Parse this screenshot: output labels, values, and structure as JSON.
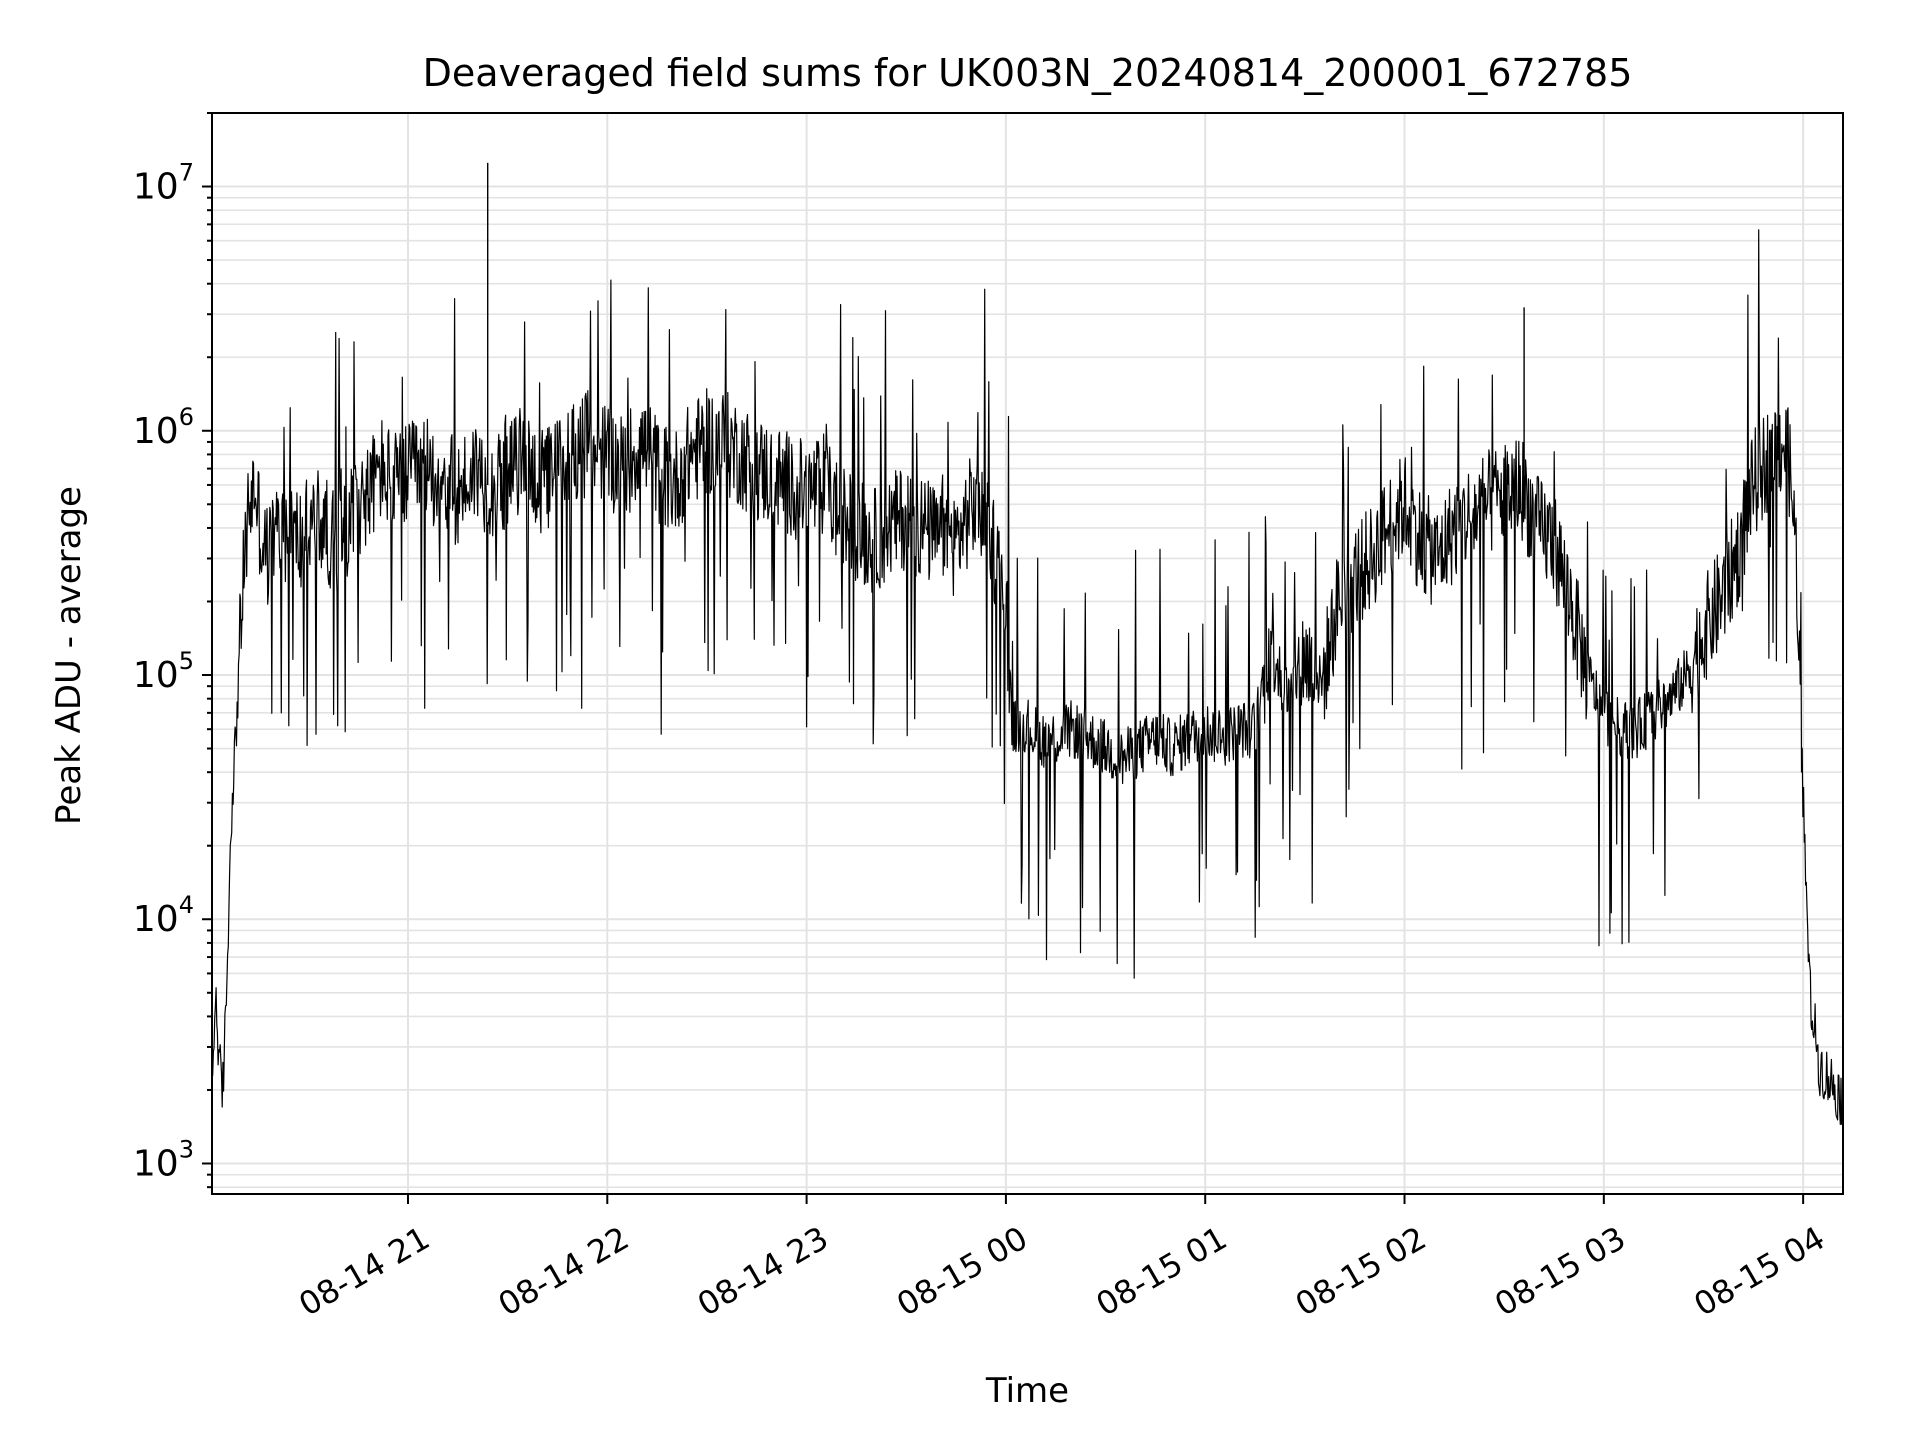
{
  "chart_data": {
    "type": "line",
    "title": "Deaveraged field sums for UK003N_20240814_200001_672785",
    "xlabel": "Time",
    "ylabel": "Peak ADU - average",
    "yscale": "log",
    "ylim": [
      750,
      20000000
    ],
    "xlim": [
      "2024-08-14 20:01",
      "2024-08-15 04:12"
    ],
    "grid": true,
    "line_color": "#000000",
    "x_ticks": [
      "08-14 21",
      "08-14 22",
      "08-14 23",
      "08-15 00",
      "08-15 01",
      "08-15 02",
      "08-15 03",
      "08-15 04"
    ],
    "y_ticks": [
      {
        "base": "10",
        "exp": "3",
        "value": 1000
      },
      {
        "base": "10",
        "exp": "4",
        "value": 10000
      },
      {
        "base": "10",
        "exp": "5",
        "value": 100000
      },
      {
        "base": "10",
        "exp": "6",
        "value": 1000000
      },
      {
        "base": "10",
        "exp": "7",
        "value": 10000000
      }
    ],
    "series": [
      {
        "x": [
          "2024-08-14 20:01",
          "2024-08-14 20:02",
          "2024-08-14 20:04",
          "2024-08-14 20:05",
          "2024-08-14 20:07",
          "2024-08-14 20:08",
          "2024-08-14 20:10",
          "2024-08-14 20:12",
          "2024-08-14 20:14",
          "2024-08-14 20:16",
          "2024-08-14 20:18",
          "2024-08-14 20:20",
          "2024-08-14 20:24",
          "2024-08-14 20:28",
          "2024-08-14 20:32",
          "2024-08-14 20:36",
          "2024-08-14 20:40",
          "2024-08-14 20:44",
          "2024-08-14 20:48",
          "2024-08-14 20:52",
          "2024-08-14 20:56",
          "2024-08-14 21:00",
          "2024-08-14 21:05",
          "2024-08-14 21:10",
          "2024-08-14 21:15",
          "2024-08-14 21:20",
          "2024-08-14 21:25",
          "2024-08-14 21:30",
          "2024-08-14 21:35",
          "2024-08-14 21:40",
          "2024-08-14 21:45",
          "2024-08-14 21:50",
          "2024-08-14 21:55",
          "2024-08-14 22:00",
          "2024-08-14 22:05",
          "2024-08-14 22:10",
          "2024-08-14 22:15",
          "2024-08-14 22:20",
          "2024-08-14 22:25",
          "2024-08-14 22:30",
          "2024-08-14 22:35",
          "2024-08-14 22:40",
          "2024-08-14 22:45",
          "2024-08-14 22:50",
          "2024-08-14 22:55",
          "2024-08-14 23:00",
          "2024-08-14 23:05",
          "2024-08-14 23:10",
          "2024-08-14 23:15",
          "2024-08-14 23:20",
          "2024-08-14 23:25",
          "2024-08-14 23:30",
          "2024-08-14 23:35",
          "2024-08-14 23:40",
          "2024-08-14 23:45",
          "2024-08-14 23:50",
          "2024-08-14 23:55",
          "2024-08-15 00:00",
          "2024-08-15 00:02",
          "2024-08-15 00:05",
          "2024-08-15 00:10",
          "2024-08-15 00:15",
          "2024-08-15 00:20",
          "2024-08-15 00:25",
          "2024-08-15 00:30",
          "2024-08-15 00:35",
          "2024-08-15 00:40",
          "2024-08-15 00:45",
          "2024-08-15 00:50",
          "2024-08-15 00:55",
          "2024-08-15 01:00",
          "2024-08-15 01:05",
          "2024-08-15 01:10",
          "2024-08-15 01:15",
          "2024-08-15 01:20",
          "2024-08-15 01:25",
          "2024-08-15 01:30",
          "2024-08-15 01:35",
          "2024-08-15 01:40",
          "2024-08-15 01:45",
          "2024-08-15 01:50",
          "2024-08-15 01:55",
          "2024-08-15 02:00",
          "2024-08-15 02:05",
          "2024-08-15 02:10",
          "2024-08-15 02:15",
          "2024-08-15 02:20",
          "2024-08-15 02:25",
          "2024-08-15 02:30",
          "2024-08-15 02:35",
          "2024-08-15 02:40",
          "2024-08-15 02:45",
          "2024-08-15 02:50",
          "2024-08-15 02:55",
          "2024-08-15 03:00",
          "2024-08-15 03:05",
          "2024-08-15 03:10",
          "2024-08-15 03:15",
          "2024-08-15 03:20",
          "2024-08-15 03:25",
          "2024-08-15 03:30",
          "2024-08-15 03:35",
          "2024-08-15 03:40",
          "2024-08-15 03:45",
          "2024-08-15 03:50",
          "2024-08-15 03:54",
          "2024-08-15 03:56",
          "2024-08-15 03:58",
          "2024-08-15 04:00",
          "2024-08-15 04:02",
          "2024-08-15 04:05",
          "2024-08-15 04:08",
          "2024-08-15 04:10",
          "2024-08-15 04:12"
        ],
        "y": [
          1800,
          5000,
          1800,
          3500,
          32000,
          50000,
          200000,
          480000,
          600000,
          350000,
          300000,
          380000,
          400000,
          350000,
          450000,
          380000,
          350000,
          500000,
          550000,
          700000,
          600000,
          650000,
          700000,
          650000,
          550000,
          700000,
          600000,
          650000,
          800000,
          600000,
          700000,
          850000,
          900000,
          800000,
          700000,
          900000,
          700000,
          600000,
          800000,
          900000,
          900000,
          800000,
          700000,
          650000,
          600000,
          550000,
          600000,
          450000,
          400000,
          350000,
          400000,
          450000,
          400000,
          350000,
          350000,
          500000,
          400000,
          200000,
          60000,
          65000,
          55000,
          55000,
          60000,
          55000,
          50000,
          45000,
          50000,
          55000,
          50000,
          55000,
          60000,
          55000,
          60000,
          60000,
          150000,
          80000,
          120000,
          90000,
          200000,
          250000,
          300000,
          400000,
          500000,
          350000,
          300000,
          400000,
          450000,
          500000,
          550000,
          600000,
          400000,
          350000,
          200000,
          100000,
          70000,
          60000,
          60000,
          70000,
          80000,
          100000,
          150000,
          200000,
          300000,
          600000,
          800000,
          900000,
          700000,
          300000,
          30000,
          5000,
          2500,
          2200,
          2000,
          1800
        ]
      }
    ]
  }
}
